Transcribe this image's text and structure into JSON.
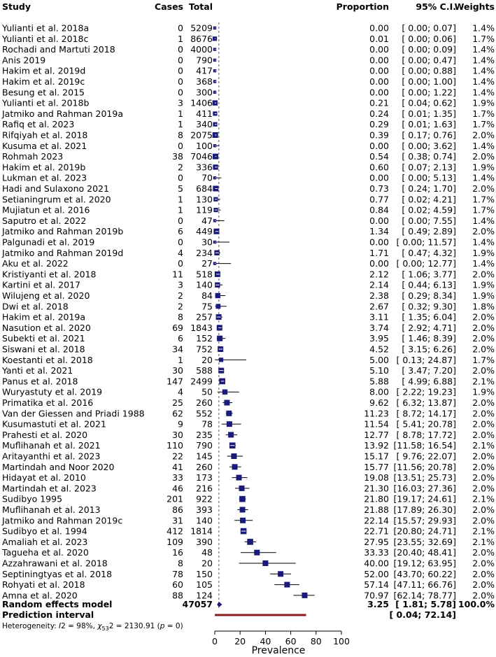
{
  "headers": {
    "study": "Study",
    "cases": "Cases",
    "total": "Total",
    "proportion": "Proportion",
    "ci": "95% C.I.",
    "weights": "Weights"
  },
  "chart_data": {
    "type": "forest",
    "xlabel": "Prevalence",
    "xlim": [
      0,
      100
    ],
    "xticks": [
      0,
      20,
      40,
      60,
      80,
      100
    ],
    "null_line": 3.25,
    "square_color": "#1a1a7a",
    "pred_color": "#8b1a1a",
    "studies": [
      {
        "name": "Yulianti et al. 2018a",
        "cases": "0",
        "total": "5209",
        "prop": "0.00",
        "ci": "[ 0.00; 0.07]",
        "weight": "1.4%",
        "est": 0.0,
        "lo": 0.0,
        "hi": 0.07
      },
      {
        "name": "Yulianti et al. 2018c",
        "cases": "1",
        "total": "8676",
        "prop": "0.01",
        "ci": "[ 0.00; 0.06]",
        "weight": "1.7%",
        "est": 0.01,
        "lo": 0.0,
        "hi": 0.06
      },
      {
        "name": "Rochadi and Martuti 2018",
        "cases": "0",
        "total": "4000",
        "prop": "0.00",
        "ci": "[ 0.00; 0.09]",
        "weight": "1.4%",
        "est": 0.0,
        "lo": 0.0,
        "hi": 0.09
      },
      {
        "name": "Anis 2019",
        "cases": "0",
        "total": "790",
        "prop": "0.00",
        "ci": "[ 0.00; 0.47]",
        "weight": "1.4%",
        "est": 0.0,
        "lo": 0.0,
        "hi": 0.47
      },
      {
        "name": "Hakim et al. 2019d",
        "cases": "0",
        "total": "417",
        "prop": "0.00",
        "ci": "[ 0.00; 0.88]",
        "weight": "1.4%",
        "est": 0.0,
        "lo": 0.0,
        "hi": 0.88
      },
      {
        "name": "Hakim et al. 2019c",
        "cases": "0",
        "total": "368",
        "prop": "0.00",
        "ci": "[ 0.00; 1.00]",
        "weight": "1.4%",
        "est": 0.0,
        "lo": 0.0,
        "hi": 1.0
      },
      {
        "name": "Besung et al. 2015",
        "cases": "0",
        "total": "300",
        "prop": "0.00",
        "ci": "[ 0.00; 1.22]",
        "weight": "1.4%",
        "est": 0.0,
        "lo": 0.0,
        "hi": 1.22
      },
      {
        "name": "Yulianti et al. 2018b",
        "cases": "3",
        "total": "1406",
        "prop": "0.21",
        "ci": "[ 0.04; 0.62]",
        "weight": "1.9%",
        "est": 0.21,
        "lo": 0.04,
        "hi": 0.62
      },
      {
        "name": "Jatmiko and Rahman 2019a",
        "cases": "1",
        "total": "411",
        "prop": "0.24",
        "ci": "[ 0.01; 1.35]",
        "weight": "1.7%",
        "est": 0.24,
        "lo": 0.01,
        "hi": 1.35
      },
      {
        "name": "Rafiq et al. 2023",
        "cases": "1",
        "total": "340",
        "prop": "0.29",
        "ci": "[ 0.01; 1.63]",
        "weight": "1.7%",
        "est": 0.29,
        "lo": 0.01,
        "hi": 1.63
      },
      {
        "name": "Rifqiyah et al. 2018",
        "cases": "8",
        "total": "2075",
        "prop": "0.39",
        "ci": "[ 0.17; 0.76]",
        "weight": "2.0%",
        "est": 0.39,
        "lo": 0.17,
        "hi": 0.76
      },
      {
        "name": "Kusuma et al. 2021",
        "cases": "0",
        "total": "100",
        "prop": "0.00",
        "ci": "[ 0.00; 3.62]",
        "weight": "1.4%",
        "est": 0.0,
        "lo": 0.0,
        "hi": 3.62
      },
      {
        "name": "Rohmah 2023",
        "cases": "38",
        "total": "7046",
        "prop": "0.54",
        "ci": "[ 0.38; 0.74]",
        "weight": "2.0%",
        "est": 0.54,
        "lo": 0.38,
        "hi": 0.74
      },
      {
        "name": "Hakim et al. 2019b",
        "cases": "2",
        "total": "336",
        "prop": "0.60",
        "ci": "[ 0.07; 2.13]",
        "weight": "1.9%",
        "est": 0.6,
        "lo": 0.07,
        "hi": 2.13
      },
      {
        "name": "Lukman et al. 2023",
        "cases": "0",
        "total": "70",
        "prop": "0.00",
        "ci": "[ 0.00; 5.13]",
        "weight": "1.4%",
        "est": 0.0,
        "lo": 0.0,
        "hi": 5.13
      },
      {
        "name": "Hadi and Sulaxono 2021",
        "cases": "5",
        "total": "684",
        "prop": "0.73",
        "ci": "[ 0.24; 1.70]",
        "weight": "2.0%",
        "est": 0.73,
        "lo": 0.24,
        "hi": 1.7
      },
      {
        "name": "Setianingrum et al. 2020",
        "cases": "1",
        "total": "130",
        "prop": "0.77",
        "ci": "[ 0.02; 4.21]",
        "weight": "1.7%",
        "est": 0.77,
        "lo": 0.02,
        "hi": 4.21
      },
      {
        "name": "Mujiatun et al. 2016",
        "cases": "1",
        "total": "119",
        "prop": "0.84",
        "ci": "[ 0.02; 4.59]",
        "weight": "1.7%",
        "est": 0.84,
        "lo": 0.02,
        "hi": 4.59
      },
      {
        "name": "Saputro et al. 2022",
        "cases": "0",
        "total": "47",
        "prop": "0.00",
        "ci": "[ 0.00; 7.55]",
        "weight": "1.4%",
        "est": 0.0,
        "lo": 0.0,
        "hi": 7.55
      },
      {
        "name": "Jatmiko and Rahman 2019b",
        "cases": "6",
        "total": "449",
        "prop": "1.34",
        "ci": "[ 0.49; 2.89]",
        "weight": "2.0%",
        "est": 1.34,
        "lo": 0.49,
        "hi": 2.89
      },
      {
        "name": "Palgunadi et al. 2019",
        "cases": "0",
        "total": "30",
        "prop": "0.00",
        "ci": "[ 0.00; 11.57]",
        "weight": "1.4%",
        "est": 0.0,
        "lo": 0.0,
        "hi": 11.57
      },
      {
        "name": "Jatmiko and Rahman 2019d",
        "cases": "4",
        "total": "234",
        "prop": "1.71",
        "ci": "[ 0.47; 4.32]",
        "weight": "1.9%",
        "est": 1.71,
        "lo": 0.47,
        "hi": 4.32
      },
      {
        "name": "Aku et al. 2022",
        "cases": "0",
        "total": "27",
        "prop": "0.00",
        "ci": "[ 0.00; 12.77]",
        "weight": "1.4%",
        "est": 0.0,
        "lo": 0.0,
        "hi": 12.77
      },
      {
        "name": "Kristiyanti et al. 2018",
        "cases": "11",
        "total": "518",
        "prop": "2.12",
        "ci": "[ 1.06; 3.77]",
        "weight": "2.0%",
        "est": 2.12,
        "lo": 1.06,
        "hi": 3.77
      },
      {
        "name": "Kartini et al. 2017",
        "cases": "3",
        "total": "140",
        "prop": "2.14",
        "ci": "[ 0.44; 6.13]",
        "weight": "1.9%",
        "est": 2.14,
        "lo": 0.44,
        "hi": 6.13
      },
      {
        "name": "Wilujeng et al. 2020",
        "cases": "2",
        "total": "84",
        "prop": "2.38",
        "ci": "[ 0.29; 8.34]",
        "weight": "1.9%",
        "est": 2.38,
        "lo": 0.29,
        "hi": 8.34
      },
      {
        "name": "Dwi et al. 2018",
        "cases": "2",
        "total": "75",
        "prop": "2.67",
        "ci": "[ 0.32; 9.30]",
        "weight": "1.8%",
        "est": 2.67,
        "lo": 0.32,
        "hi": 9.3
      },
      {
        "name": "Hakim et al. 2019a",
        "cases": "8",
        "total": "257",
        "prop": "3.11",
        "ci": "[ 1.35; 6.04]",
        "weight": "2.0%",
        "est": 3.11,
        "lo": 1.35,
        "hi": 6.04
      },
      {
        "name": "Nasution et al. 2020",
        "cases": "69",
        "total": "1843",
        "prop": "3.74",
        "ci": "[ 2.92; 4.71]",
        "weight": "2.0%",
        "est": 3.74,
        "lo": 2.92,
        "hi": 4.71
      },
      {
        "name": "Subekti et al. 2021",
        "cases": "6",
        "total": "152",
        "prop": "3.95",
        "ci": "[ 1.46; 8.39]",
        "weight": "2.0%",
        "est": 3.95,
        "lo": 1.46,
        "hi": 8.39
      },
      {
        "name": "Siswani et al. 2018",
        "cases": "34",
        "total": "752",
        "prop": "4.52",
        "ci": "[ 3.15; 6.26]",
        "weight": "2.0%",
        "est": 4.52,
        "lo": 3.15,
        "hi": 6.26
      },
      {
        "name": "Koestanti et al. 2018",
        "cases": "1",
        "total": "20",
        "prop": "5.00",
        "ci": "[ 0.13; 24.87]",
        "weight": "1.7%",
        "est": 5.0,
        "lo": 0.13,
        "hi": 24.87
      },
      {
        "name": "Yanti et al. 2021",
        "cases": "30",
        "total": "588",
        "prop": "5.10",
        "ci": "[ 3.47; 7.20]",
        "weight": "2.0%",
        "est": 5.1,
        "lo": 3.47,
        "hi": 7.2
      },
      {
        "name": "Panus et al. 2018",
        "cases": "147",
        "total": "2499",
        "prop": "5.88",
        "ci": "[ 4.99; 6.88]",
        "weight": "2.1%",
        "est": 5.88,
        "lo": 4.99,
        "hi": 6.88
      },
      {
        "name": "Wuryastuty et al. 2019",
        "cases": "4",
        "total": "50",
        "prop": "8.00",
        "ci": "[ 2.22; 19.23]",
        "weight": "1.9%",
        "est": 8.0,
        "lo": 2.22,
        "hi": 19.23
      },
      {
        "name": "Primatika et al. 2016",
        "cases": "25",
        "total": "260",
        "prop": "9.62",
        "ci": "[ 6.32; 13.87]",
        "weight": "2.0%",
        "est": 9.62,
        "lo": 6.32,
        "hi": 13.87
      },
      {
        "name": "Van der Giessen and Priadi 1988",
        "cases": "62",
        "total": "552",
        "prop": "11.23",
        "ci": "[ 8.72; 14.17]",
        "weight": "2.0%",
        "est": 11.23,
        "lo": 8.72,
        "hi": 14.17
      },
      {
        "name": "Kusumastuti et al. 2021",
        "cases": "9",
        "total": "78",
        "prop": "11.54",
        "ci": "[ 5.41; 20.78]",
        "weight": "2.0%",
        "est": 11.54,
        "lo": 5.41,
        "hi": 20.78
      },
      {
        "name": "Prahesti et al. 2020",
        "cases": "30",
        "total": "235",
        "prop": "12.77",
        "ci": "[ 8.78; 17.72]",
        "weight": "2.0%",
        "est": 12.77,
        "lo": 8.78,
        "hi": 17.72
      },
      {
        "name": "Muflihanah et al. 2021",
        "cases": "110",
        "total": "790",
        "prop": "13.92",
        "ci": "[11.58; 16.54]",
        "weight": "2.1%",
        "est": 13.92,
        "lo": 11.58,
        "hi": 16.54
      },
      {
        "name": "Aritayanthi et al. 2023",
        "cases": "22",
        "total": "145",
        "prop": "15.17",
        "ci": "[ 9.76; 22.07]",
        "weight": "2.0%",
        "est": 15.17,
        "lo": 9.76,
        "hi": 22.07
      },
      {
        "name": "Martindah and Noor 2020",
        "cases": "41",
        "total": "260",
        "prop": "15.77",
        "ci": "[11.56; 20.78]",
        "weight": "2.0%",
        "est": 15.77,
        "lo": 11.56,
        "hi": 20.78
      },
      {
        "name": "Hidayat et al. 2010",
        "cases": "33",
        "total": "173",
        "prop": "19.08",
        "ci": "[13.51; 25.73]",
        "weight": "2.0%",
        "est": 19.08,
        "lo": 13.51,
        "hi": 25.73
      },
      {
        "name": "Martindah et al. 2023",
        "cases": "46",
        "total": "216",
        "prop": "21.30",
        "ci": "[16.03; 27.36]",
        "weight": "2.0%",
        "est": 21.3,
        "lo": 16.03,
        "hi": 27.36
      },
      {
        "name": "Sudibyo 1995",
        "cases": "201",
        "total": "922",
        "prop": "21.80",
        "ci": "[19.17; 24.61]",
        "weight": "2.1%",
        "est": 21.8,
        "lo": 19.17,
        "hi": 24.61
      },
      {
        "name": "Muflihanah et al. 2013",
        "cases": "86",
        "total": "393",
        "prop": "21.88",
        "ci": "[17.89; 26.30]",
        "weight": "2.0%",
        "est": 21.88,
        "lo": 17.89,
        "hi": 26.3
      },
      {
        "name": "Jatmiko and Rahman 2019c",
        "cases": "31",
        "total": "140",
        "prop": "22.14",
        "ci": "[15.57; 29.93]",
        "weight": "2.0%",
        "est": 22.14,
        "lo": 15.57,
        "hi": 29.93
      },
      {
        "name": "Sudibyo et al. 1994",
        "cases": "412",
        "total": "1814",
        "prop": "22.71",
        "ci": "[20.80; 24.71]",
        "weight": "2.1%",
        "est": 22.71,
        "lo": 20.8,
        "hi": 24.71
      },
      {
        "name": "Amaliah et al. 2023",
        "cases": "109",
        "total": "390",
        "prop": "27.95",
        "ci": "[23.55; 32.69]",
        "weight": "2.1%",
        "est": 27.95,
        "lo": 23.55,
        "hi": 32.69
      },
      {
        "name": "Tagueha et al. 2020",
        "cases": "16",
        "total": "48",
        "prop": "33.33",
        "ci": "[20.40; 48.41]",
        "weight": "2.0%",
        "est": 33.33,
        "lo": 20.4,
        "hi": 48.41
      },
      {
        "name": "Azzahrawani et al. 2018",
        "cases": "8",
        "total": "20",
        "prop": "40.00",
        "ci": "[19.12; 63.95]",
        "weight": "2.0%",
        "est": 40.0,
        "lo": 19.12,
        "hi": 63.95
      },
      {
        "name": "Septiningtyas et al. 2018",
        "cases": "78",
        "total": "150",
        "prop": "52.00",
        "ci": "[43.70; 60.22]",
        "weight": "2.0%",
        "est": 52.0,
        "lo": 43.7,
        "hi": 60.22
      },
      {
        "name": "Rohyati et al. 2018",
        "cases": "60",
        "total": "105",
        "prop": "57.14",
        "ci": "[47.11; 66.76]",
        "weight": "2.0%",
        "est": 57.14,
        "lo": 47.11,
        "hi": 66.76
      },
      {
        "name": "Amna et al. 2020",
        "cases": "88",
        "total": "124",
        "prop": "70.97",
        "ci": "[62.14; 78.77]",
        "weight": "2.0%",
        "est": 70.97,
        "lo": 62.14,
        "hi": 78.77
      }
    ],
    "random_effects": {
      "label": "Random effects model",
      "total": "47057",
      "prop": "3.25",
      "ci": "[ 1.81; 5.78]",
      "weight": "100.0%",
      "est": 3.25,
      "lo": 1.81,
      "hi": 5.78
    },
    "prediction": {
      "label": "Prediction interval",
      "ci": "[ 0.04; 72.14]",
      "lo": 0.04,
      "hi": 72.14
    },
    "heterogeneity": {
      "prefix": "Heterogeneity: ",
      "i2": "I",
      "i2_value": "2 = 98%, ",
      "chi": "χ",
      "chi_sub": "53",
      "chi_value": "2 = 2130.91 (",
      "p": "p",
      "p_value": " = 0)"
    }
  }
}
